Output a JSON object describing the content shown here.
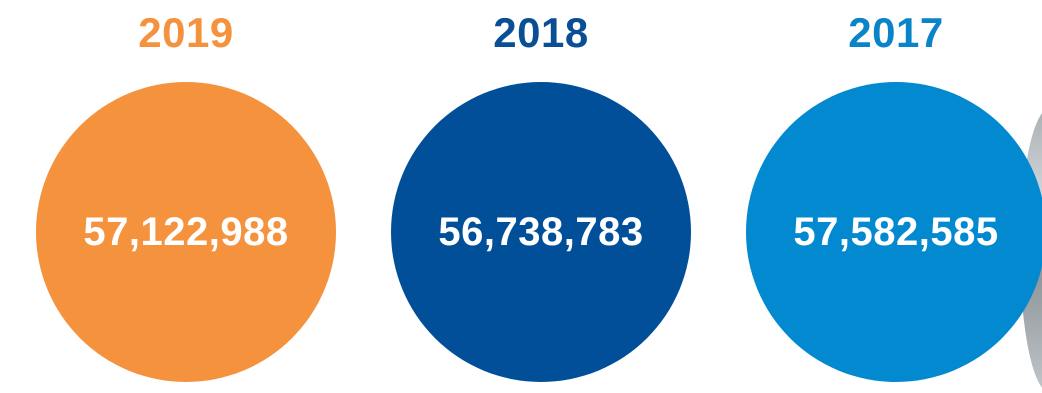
{
  "stats": [
    {
      "year": "2019",
      "value": "57,122,988",
      "year_color": "#F5923E",
      "circle_color": "#F5923E"
    },
    {
      "year": "2018",
      "value": "56,738,783",
      "year_color": "#0A4F96",
      "circle_color": "#004F98"
    },
    {
      "year": "2017",
      "value": "57,582,585",
      "year_color": "#0A84C8",
      "circle_color": "#0389D0"
    }
  ],
  "colors": {
    "text_on_circle": "#FFFFFF",
    "background": "#FFFFFF"
  }
}
